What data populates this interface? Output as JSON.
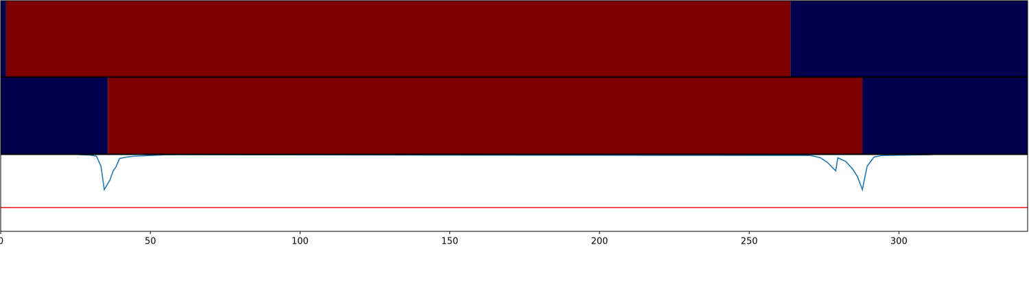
{
  "chart_data": {
    "type": "line",
    "xlim": [
      0,
      343
    ],
    "xticks": [
      0,
      50,
      100,
      150,
      200,
      250,
      300
    ],
    "bands": [
      [
        {
          "start": 0,
          "end": 1.8,
          "color": "#00004c"
        },
        {
          "start": 1.8,
          "end": 263.8,
          "color": "#7f0000"
        },
        {
          "start": 263.8,
          "end": 343,
          "color": "#00004c"
        }
      ],
      [
        {
          "start": 0,
          "end": 35.8,
          "color": "#00004c"
        },
        {
          "start": 35.8,
          "end": 287.8,
          "color": "#7f0000"
        },
        {
          "start": 287.8,
          "end": 343,
          "color": "#00004c"
        }
      ]
    ],
    "ylim": [
      0,
      1
    ],
    "series": [
      {
        "color": "#1f77b4",
        "x": [
          26,
          30,
          32,
          33.5,
          34.6,
          36.5,
          37.6,
          38.5,
          39.7,
          42.2,
          44.5,
          56,
          150,
          270.4,
          273.8,
          276.1,
          278.9,
          279.6,
          282.3,
          284.6,
          286.2,
          287.8,
          289.4,
          291.7,
          294.5,
          311.2
        ],
        "values": [
          1.0,
          0.995,
          0.98,
          0.85,
          0.545,
          0.67,
          0.79,
          0.84,
          0.95,
          0.97,
          0.98,
          1.0,
          0.995,
          0.99,
          0.96,
          0.9,
          0.79,
          0.96,
          0.91,
          0.81,
          0.71,
          0.545,
          0.85,
          0.97,
          0.99,
          1.0
        ]
      }
    ],
    "threshold": {
      "value": 0.31,
      "color": "#e41a1c"
    }
  }
}
